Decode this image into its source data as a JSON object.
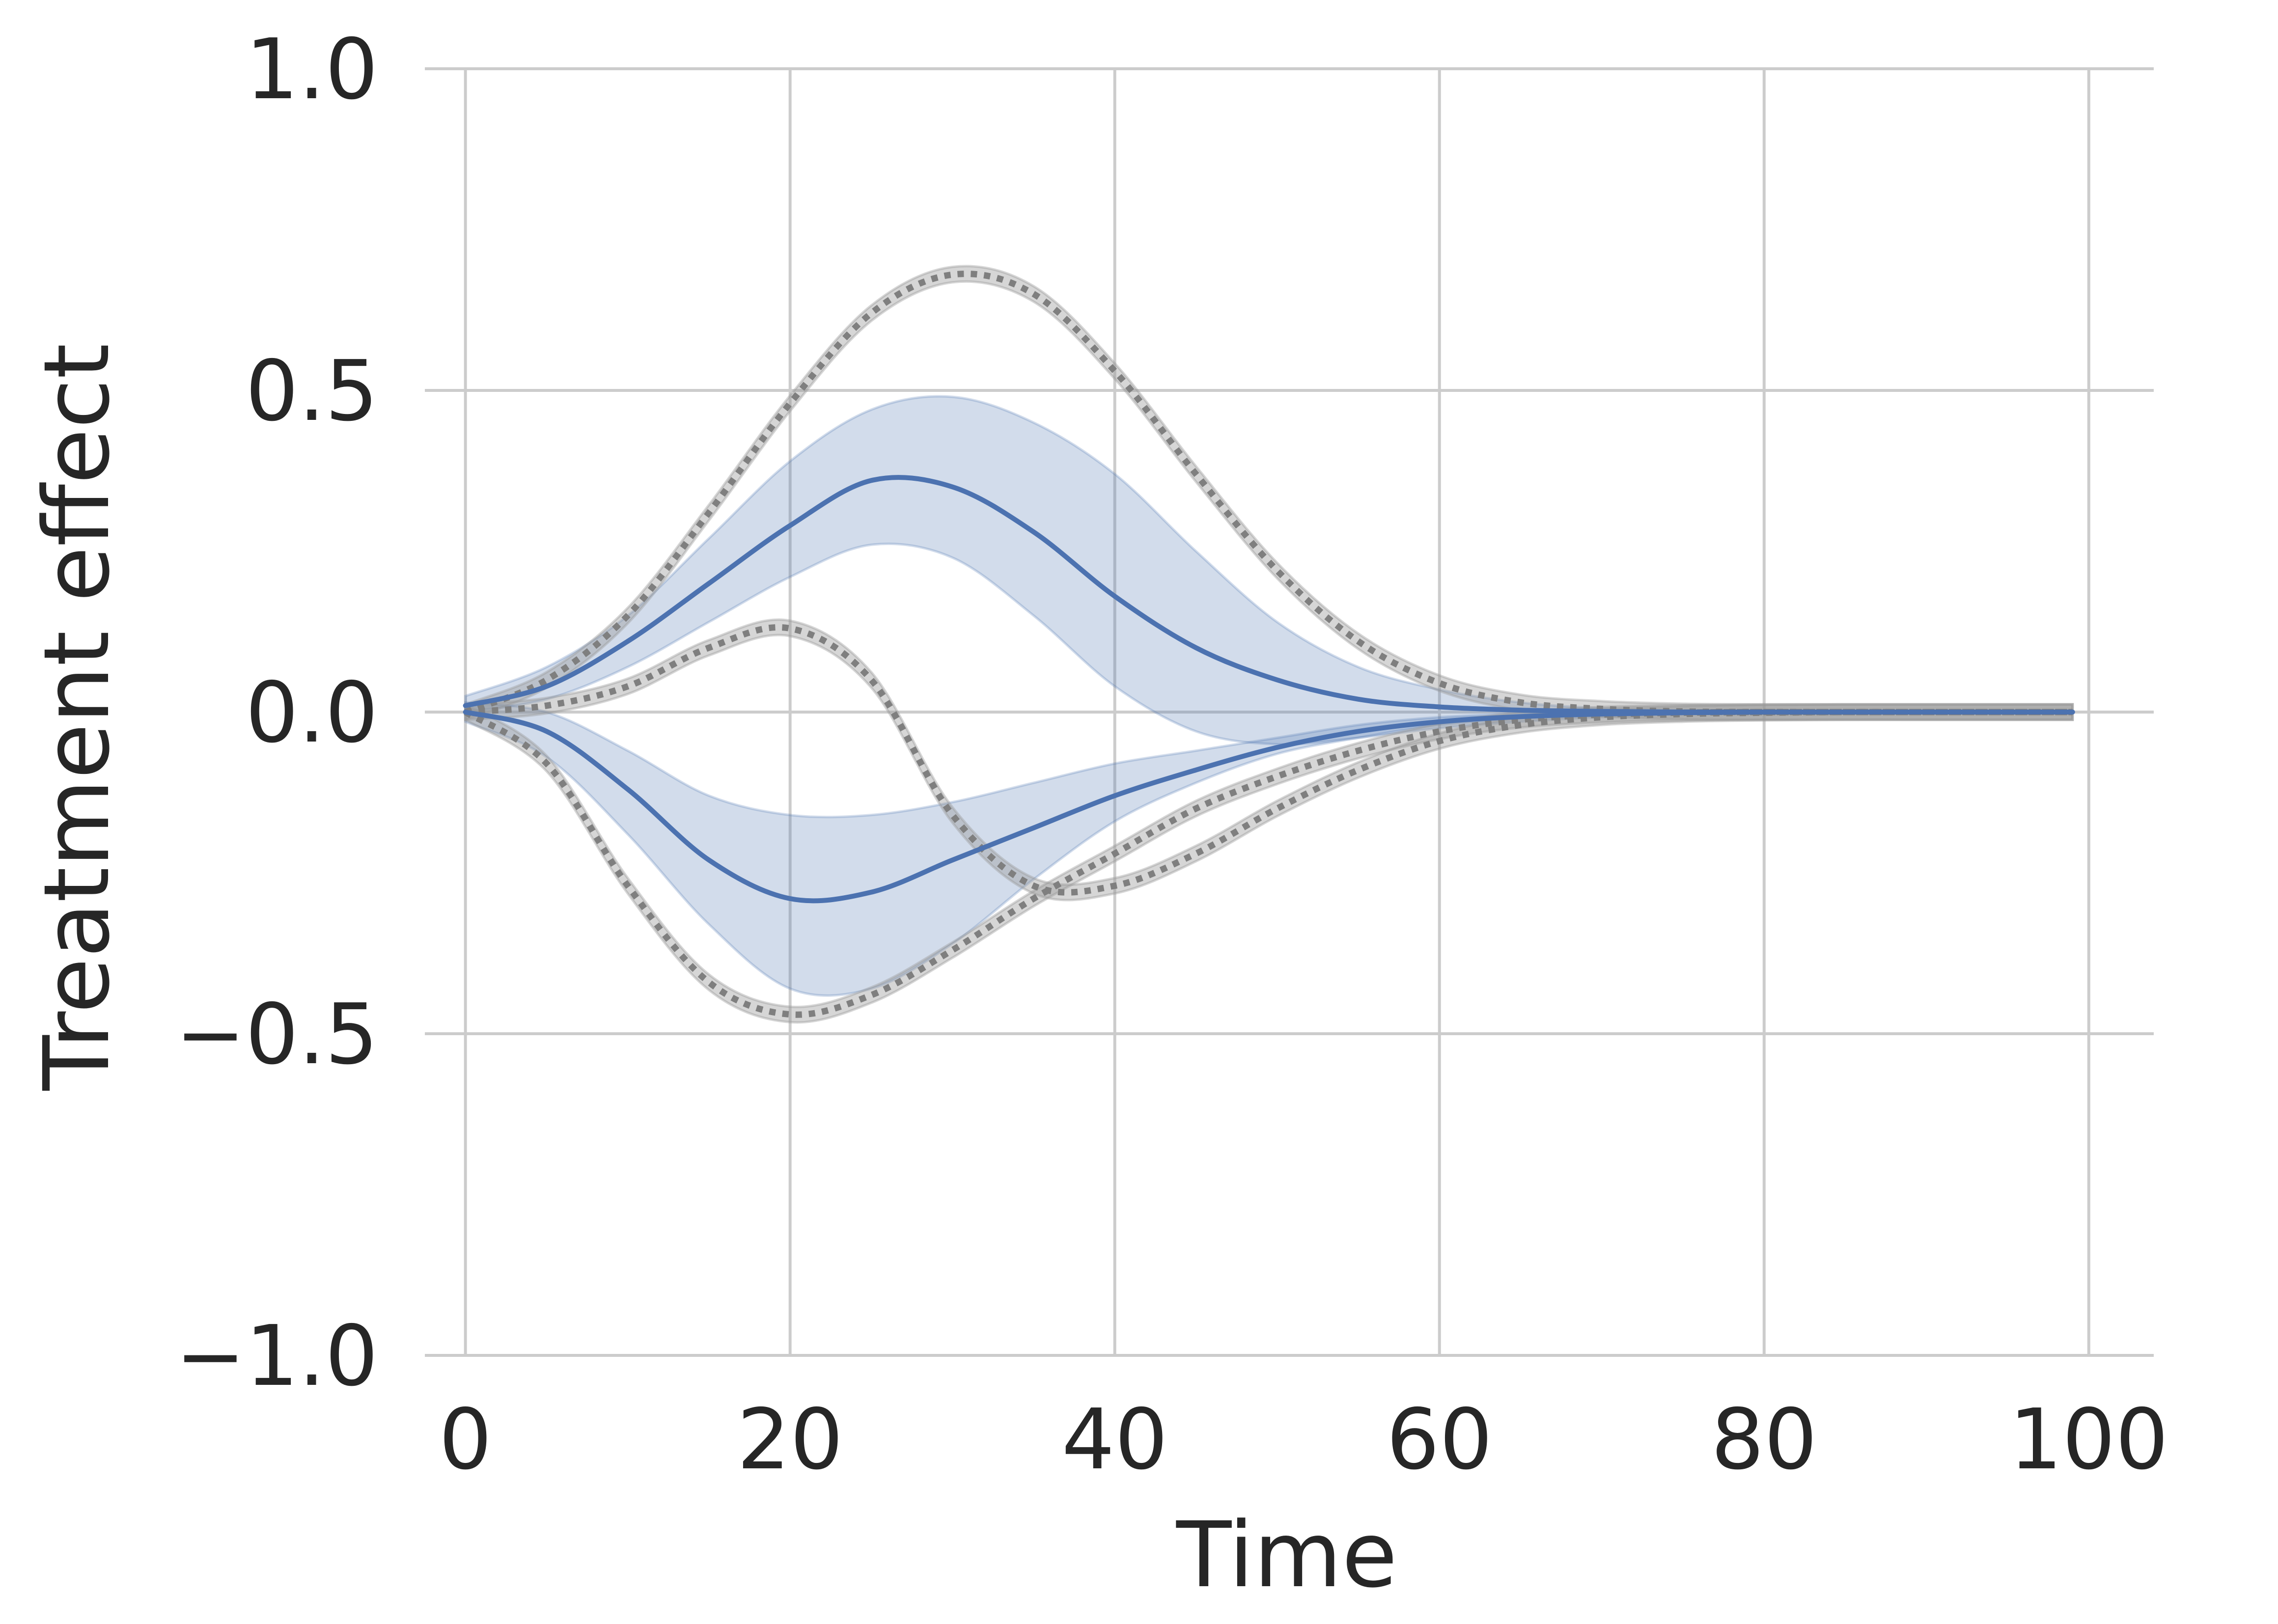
{
  "chart_data": {
    "type": "line",
    "title": "",
    "xlabel": "Time",
    "ylabel": "Treatment effect",
    "xlim": [
      -2.5,
      104
    ],
    "ylim": [
      -1.0,
      1.0
    ],
    "x_ticks": [
      0,
      20,
      40,
      60,
      80,
      100
    ],
    "y_ticks": [
      -1.0,
      -0.5,
      0.0,
      0.5,
      1.0
    ],
    "x_tick_labels": [
      "0",
      "20",
      "40",
      "60",
      "80",
      "100"
    ],
    "y_tick_labels": [
      "−1.0",
      "−0.5",
      "0.0",
      "0.5",
      "1.0"
    ],
    "grid": true,
    "legend": "none",
    "colors": {
      "predicted": "#4c72b0",
      "predicted_band": "#4c72b0",
      "true": "#7f7f7f",
      "true_band": "#999999"
    },
    "x": [
      0,
      5,
      10,
      15,
      20,
      25,
      30,
      35,
      40,
      45,
      50,
      55,
      60,
      65,
      70,
      75,
      80,
      85,
      90,
      95,
      99
    ],
    "series": [
      {
        "role": "predicted",
        "style": "solid",
        "values": [
          0.01,
          0.04,
          0.11,
          0.2,
          0.29,
          0.36,
          0.35,
          0.28,
          0.18,
          0.1,
          0.05,
          0.02,
          0.008,
          0.003,
          0.001,
          0.0,
          0.0,
          0.0,
          0.0,
          0.0,
          0.0
        ],
        "lower": [
          0.0,
          0.02,
          0.07,
          0.14,
          0.21,
          0.26,
          0.24,
          0.15,
          0.04,
          -0.03,
          -0.05,
          -0.04,
          -0.025,
          -0.015,
          -0.008,
          -0.004,
          -0.002,
          -0.001,
          0.0,
          0.0,
          0.0
        ],
        "upper": [
          0.025,
          0.07,
          0.15,
          0.27,
          0.39,
          0.47,
          0.49,
          0.45,
          0.37,
          0.25,
          0.14,
          0.07,
          0.035,
          0.015,
          0.006,
          0.003,
          0.0015,
          0.0,
          0.0,
          0.0,
          0.0
        ]
      },
      {
        "role": "predicted",
        "style": "solid",
        "values": [
          0.0,
          -0.03,
          -0.12,
          -0.23,
          -0.29,
          -0.28,
          -0.23,
          -0.18,
          -0.13,
          -0.09,
          -0.055,
          -0.03,
          -0.015,
          -0.007,
          -0.003,
          -0.001,
          0.0,
          0.0,
          0.0,
          0.0,
          0.0
        ],
        "lower": [
          -0.015,
          -0.07,
          -0.19,
          -0.33,
          -0.43,
          -0.43,
          -0.36,
          -0.26,
          -0.17,
          -0.11,
          -0.065,
          -0.04,
          -0.02,
          -0.01,
          -0.005,
          -0.002,
          -0.001,
          0.0,
          0.0,
          0.0,
          0.0
        ],
        "upper": [
          0.015,
          0.0,
          -0.06,
          -0.13,
          -0.16,
          -0.16,
          -0.14,
          -0.11,
          -0.08,
          -0.06,
          -0.04,
          -0.02,
          -0.008,
          -0.003,
          0.0,
          0.002,
          0.002,
          0.001,
          0.0,
          0.0,
          0.0
        ]
      },
      {
        "role": "true",
        "style": "dotted",
        "values": [
          0.0,
          0.05,
          0.15,
          0.31,
          0.48,
          0.62,
          0.68,
          0.65,
          0.53,
          0.37,
          0.22,
          0.11,
          0.045,
          0.015,
          0.005,
          0.001,
          0.0,
          0.0,
          0.0,
          0.0,
          0.0
        ],
        "band_half_width": 0.012
      },
      {
        "role": "true",
        "style": "dotted",
        "values": [
          0.0,
          0.01,
          0.04,
          0.1,
          0.13,
          0.05,
          -0.16,
          -0.27,
          -0.27,
          -0.22,
          -0.15,
          -0.09,
          -0.045,
          -0.02,
          -0.008,
          -0.003,
          -0.001,
          0.0,
          0.0,
          0.0,
          0.0
        ],
        "band_half_width": 0.012
      },
      {
        "role": "true",
        "style": "dotted",
        "values": [
          0.0,
          -0.08,
          -0.27,
          -0.42,
          -0.47,
          -0.44,
          -0.37,
          -0.29,
          -0.22,
          -0.15,
          -0.1,
          -0.06,
          -0.03,
          -0.012,
          -0.004,
          -0.001,
          0.0,
          0.0,
          0.0,
          0.0,
          0.0
        ],
        "band_half_width": 0.012
      }
    ]
  }
}
